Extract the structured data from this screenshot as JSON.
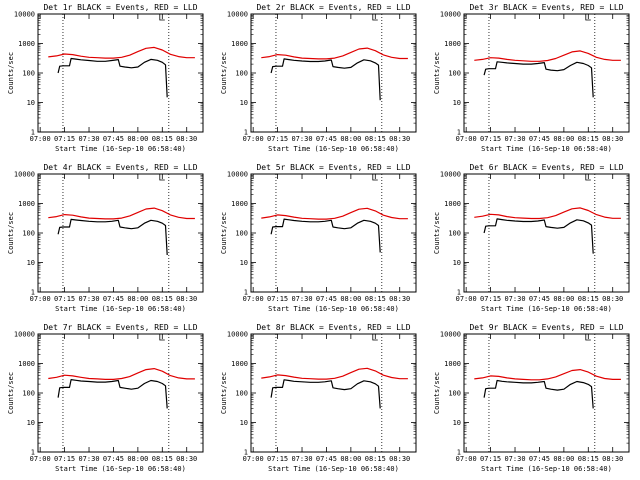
{
  "xlabel_common": "Start Time (16-Sep-10 06:58:40)",
  "ylabel_common": "Counts/sec",
  "x_ticks": [
    "07:00",
    "07:15",
    "07:30",
    "07:45",
    "08:00",
    "08:15",
    "08:30"
  ],
  "y_ticks": [
    "1",
    "10",
    "100",
    "1000",
    "10000"
  ],
  "colors": {
    "events": "#000000",
    "lld": "#e00000"
  },
  "chart_data": [
    {
      "type": "line",
      "title": "Det 1r BLACK = Events, RED = LLD",
      "xlabel": "Start Time (16-Sep-10 06:58:40)",
      "ylabel": "Counts/sec",
      "yscale": "log",
      "ylim": [
        1,
        10000
      ],
      "xlim": [
        "06:58:40",
        "08:40"
      ],
      "dotted_vlines": [
        "07:14",
        "08:19"
      ],
      "series": [
        {
          "x": [
            "07:05",
            "07:10",
            "07:15",
            "07:20",
            "07:25",
            "07:30",
            "07:35",
            "07:40",
            "07:45",
            "07:50",
            "07:55",
            "08:00",
            "08:05",
            "08:10",
            "08:15",
            "08:20",
            "08:25",
            "08:30",
            "08:35"
          ],
          "values": [
            350,
            380,
            440,
            420,
            370,
            340,
            330,
            320,
            320,
            340,
            400,
            530,
            690,
            740,
            600,
            430,
            360,
            330,
            330
          ]
        },
        {
          "x": [
            "07:11",
            "07:12",
            "07:14",
            "07:18",
            "07:19",
            "07:22",
            "07:25",
            "07:30",
            "07:35",
            "07:40",
            "07:44",
            "07:48",
            "07:49",
            "07:52",
            "07:56",
            "08:00",
            "08:04",
            "08:08",
            "08:12",
            "08:15",
            "08:17",
            "08:18"
          ],
          "values": [
            100,
            170,
            175,
            175,
            310,
            295,
            280,
            265,
            250,
            250,
            265,
            285,
            170,
            160,
            150,
            160,
            230,
            290,
            270,
            230,
            190,
            15
          ]
        }
      ]
    },
    {
      "type": "line",
      "title": "Det 2r BLACK = Events, RED = LLD",
      "xlabel": "Start Time (16-Sep-10 06:58:40)",
      "ylabel": "Counts/sec",
      "yscale": "log",
      "ylim": [
        1,
        10000
      ],
      "xlim": [
        "06:58:40",
        "08:40"
      ],
      "dotted_vlines": [
        "07:14",
        "08:19"
      ],
      "series": [
        {
          "x": [
            "07:05",
            "07:10",
            "07:15",
            "07:20",
            "07:25",
            "07:30",
            "07:35",
            "07:40",
            "07:45",
            "07:50",
            "07:55",
            "08:00",
            "08:05",
            "08:10",
            "08:15",
            "08:20",
            "08:25",
            "08:30",
            "08:35"
          ],
          "values": [
            330,
            360,
            420,
            400,
            350,
            320,
            310,
            300,
            300,
            320,
            380,
            500,
            650,
            700,
            570,
            410,
            340,
            310,
            310
          ]
        },
        {
          "x": [
            "07:11",
            "07:12",
            "07:14",
            "07:18",
            "07:19",
            "07:22",
            "07:25",
            "07:30",
            "07:35",
            "07:40",
            "07:44",
            "07:48",
            "07:49",
            "07:52",
            "07:56",
            "08:00",
            "08:04",
            "08:08",
            "08:12",
            "08:15",
            "08:17",
            "08:18"
          ],
          "values": [
            100,
            165,
            170,
            170,
            300,
            285,
            270,
            255,
            245,
            245,
            255,
            275,
            165,
            155,
            145,
            155,
            220,
            280,
            260,
            220,
            185,
            12
          ]
        }
      ]
    },
    {
      "type": "line",
      "title": "Det 3r BLACK = Events, RED = LLD",
      "xlabel": "Start Time (16-Sep-10 06:58:40)",
      "ylabel": "Counts/sec",
      "yscale": "log",
      "ylim": [
        1,
        10000
      ],
      "xlim": [
        "06:58:40",
        "08:40"
      ],
      "dotted_vlines": [
        "07:14",
        "08:19"
      ],
      "series": [
        {
          "x": [
            "07:05",
            "07:10",
            "07:15",
            "07:20",
            "07:25",
            "07:30",
            "07:35",
            "07:40",
            "07:45",
            "07:50",
            "07:55",
            "08:00",
            "08:05",
            "08:10",
            "08:15",
            "08:20",
            "08:25",
            "08:30",
            "08:35"
          ],
          "values": [
            270,
            290,
            330,
            320,
            290,
            270,
            260,
            250,
            250,
            265,
            310,
            400,
            520,
            560,
            460,
            340,
            290,
            270,
            270
          ]
        },
        {
          "x": [
            "07:11",
            "07:12",
            "07:14",
            "07:18",
            "07:19",
            "07:22",
            "07:25",
            "07:30",
            "07:35",
            "07:40",
            "07:44",
            "07:48",
            "07:49",
            "07:52",
            "07:56",
            "08:00",
            "08:04",
            "08:08",
            "08:12",
            "08:15",
            "08:17",
            "08:18"
          ],
          "values": [
            85,
            135,
            140,
            140,
            240,
            230,
            220,
            210,
            200,
            200,
            210,
            225,
            135,
            125,
            120,
            130,
            180,
            230,
            210,
            180,
            150,
            15
          ]
        }
      ]
    },
    {
      "type": "line",
      "title": "Det 4r BLACK = Events, RED = LLD",
      "xlabel": "Start Time (16-Sep-10 06:58:40)",
      "ylabel": "Counts/sec",
      "yscale": "log",
      "ylim": [
        1,
        10000
      ],
      "xlim": [
        "06:58:40",
        "08:40"
      ],
      "dotted_vlines": [
        "07:14",
        "08:19"
      ],
      "series": [
        {
          "x": [
            "07:05",
            "07:10",
            "07:15",
            "07:20",
            "07:25",
            "07:30",
            "07:35",
            "07:40",
            "07:45",
            "07:50",
            "07:55",
            "08:00",
            "08:05",
            "08:10",
            "08:15",
            "08:20",
            "08:25",
            "08:30",
            "08:35"
          ],
          "values": [
            330,
            360,
            420,
            400,
            350,
            320,
            310,
            300,
            300,
            320,
            380,
            500,
            650,
            700,
            570,
            410,
            340,
            310,
            310
          ]
        },
        {
          "x": [
            "07:11",
            "07:12",
            "07:14",
            "07:18",
            "07:19",
            "07:22",
            "07:25",
            "07:30",
            "07:35",
            "07:40",
            "07:44",
            "07:48",
            "07:49",
            "07:52",
            "07:56",
            "08:00",
            "08:04",
            "08:08",
            "08:12",
            "08:15",
            "08:17",
            "08:18"
          ],
          "values": [
            90,
            155,
            160,
            160,
            290,
            275,
            265,
            250,
            240,
            240,
            250,
            270,
            160,
            150,
            140,
            150,
            215,
            270,
            250,
            215,
            180,
            18
          ]
        }
      ]
    },
    {
      "type": "line",
      "title": "Det 5r BLACK = Events, RED = LLD",
      "xlabel": "Start Time (16-Sep-10 06:58:40)",
      "ylabel": "Counts/sec",
      "yscale": "log",
      "ylim": [
        1,
        10000
      ],
      "xlim": [
        "06:58:40",
        "08:40"
      ],
      "dotted_vlines": [
        "07:14",
        "08:19"
      ],
      "series": [
        {
          "x": [
            "07:05",
            "07:10",
            "07:15",
            "07:20",
            "07:25",
            "07:30",
            "07:35",
            "07:40",
            "07:45",
            "07:50",
            "07:55",
            "08:00",
            "08:05",
            "08:10",
            "08:15",
            "08:20",
            "08:25",
            "08:30",
            "08:35"
          ],
          "values": [
            320,
            350,
            410,
            390,
            345,
            315,
            305,
            295,
            295,
            315,
            370,
            490,
            640,
            690,
            560,
            400,
            335,
            305,
            305
          ]
        },
        {
          "x": [
            "07:11",
            "07:12",
            "07:14",
            "07:18",
            "07:19",
            "07:22",
            "07:25",
            "07:30",
            "07:35",
            "07:40",
            "07:44",
            "07:48",
            "07:49",
            "07:52",
            "07:56",
            "08:00",
            "08:04",
            "08:08",
            "08:12",
            "08:15",
            "08:17",
            "08:18"
          ],
          "values": [
            90,
            160,
            165,
            165,
            295,
            280,
            265,
            250,
            240,
            240,
            250,
            270,
            160,
            150,
            140,
            150,
            215,
            270,
            250,
            215,
            180,
            22
          ]
        }
      ]
    },
    {
      "type": "line",
      "title": "Det 6r BLACK = Events, RED = LLD",
      "xlabel": "Start Time (16-Sep-10 06:58:40)",
      "ylabel": "Counts/sec",
      "yscale": "log",
      "ylim": [
        1,
        10000
      ],
      "xlim": [
        "06:58:40",
        "08:40"
      ],
      "dotted_vlines": [
        "07:14",
        "08:19"
      ],
      "series": [
        {
          "x": [
            "07:05",
            "07:10",
            "07:15",
            "07:20",
            "07:25",
            "07:30",
            "07:35",
            "07:40",
            "07:45",
            "07:50",
            "07:55",
            "08:00",
            "08:05",
            "08:10",
            "08:15",
            "08:20",
            "08:25",
            "08:30",
            "08:35"
          ],
          "values": [
            340,
            370,
            430,
            410,
            360,
            330,
            320,
            310,
            310,
            330,
            390,
            510,
            660,
            710,
            580,
            420,
            345,
            315,
            315
          ]
        },
        {
          "x": [
            "07:11",
            "07:12",
            "07:14",
            "07:18",
            "07:19",
            "07:22",
            "07:25",
            "07:30",
            "07:35",
            "07:40",
            "07:44",
            "07:48",
            "07:49",
            "07:52",
            "07:56",
            "08:00",
            "08:04",
            "08:08",
            "08:12",
            "08:15",
            "08:17",
            "08:18"
          ],
          "values": [
            100,
            170,
            175,
            175,
            300,
            285,
            270,
            255,
            245,
            245,
            255,
            275,
            165,
            155,
            145,
            155,
            220,
            280,
            260,
            220,
            185,
            20
          ]
        }
      ]
    },
    {
      "type": "line",
      "title": "Det 7r BLACK = Events, RED = LLD",
      "xlabel": "Start Time (16-Sep-10 06:58:40)",
      "ylabel": "Counts/sec",
      "yscale": "log",
      "ylim": [
        1,
        10000
      ],
      "xlim": [
        "06:58:40",
        "08:40"
      ],
      "dotted_vlines": [
        "07:14",
        "08:19"
      ],
      "series": [
        {
          "x": [
            "07:05",
            "07:10",
            "07:15",
            "07:20",
            "07:25",
            "07:30",
            "07:35",
            "07:40",
            "07:45",
            "07:50",
            "07:55",
            "08:00",
            "08:05",
            "08:10",
            "08:15",
            "08:20",
            "08:25",
            "08:30",
            "08:35"
          ],
          "values": [
            310,
            340,
            400,
            380,
            340,
            310,
            300,
            290,
            290,
            310,
            360,
            480,
            620,
            670,
            550,
            390,
            325,
            300,
            300
          ]
        },
        {
          "x": [
            "07:11",
            "07:12",
            "07:14",
            "07:18",
            "07:19",
            "07:22",
            "07:25",
            "07:30",
            "07:35",
            "07:40",
            "07:44",
            "07:48",
            "07:49",
            "07:52",
            "07:56",
            "08:00",
            "08:04",
            "08:08",
            "08:12",
            "08:15",
            "08:17",
            "08:18"
          ],
          "values": [
            70,
            150,
            155,
            155,
            285,
            270,
            255,
            245,
            235,
            235,
            245,
            265,
            155,
            145,
            135,
            145,
            210,
            265,
            245,
            210,
            175,
            30
          ]
        }
      ]
    },
    {
      "type": "line",
      "title": "Det 8r BLACK = Events, RED = LLD",
      "xlabel": "Start Time (16-Sep-10 06:58:40)",
      "ylabel": "Counts/sec",
      "yscale": "log",
      "ylim": [
        1,
        10000
      ],
      "xlim": [
        "06:58:40",
        "08:40"
      ],
      "dotted_vlines": [
        "07:14",
        "08:19"
      ],
      "series": [
        {
          "x": [
            "07:05",
            "07:10",
            "07:15",
            "07:20",
            "07:25",
            "07:30",
            "07:35",
            "07:40",
            "07:45",
            "07:50",
            "07:55",
            "08:00",
            "08:05",
            "08:10",
            "08:15",
            "08:20",
            "08:25",
            "08:30",
            "08:35"
          ],
          "values": [
            320,
            350,
            410,
            390,
            345,
            315,
            305,
            295,
            295,
            315,
            370,
            490,
            640,
            690,
            560,
            400,
            335,
            305,
            305
          ]
        },
        {
          "x": [
            "07:11",
            "07:12",
            "07:14",
            "07:18",
            "07:19",
            "07:22",
            "07:25",
            "07:30",
            "07:35",
            "07:40",
            "07:44",
            "07:48",
            "07:49",
            "07:52",
            "07:56",
            "08:00",
            "08:04",
            "08:08",
            "08:12",
            "08:15",
            "08:17",
            "08:18"
          ],
          "values": [
            70,
            150,
            155,
            155,
            280,
            265,
            250,
            240,
            230,
            230,
            240,
            260,
            150,
            140,
            130,
            140,
            205,
            260,
            240,
            205,
            170,
            30
          ]
        }
      ]
    },
    {
      "type": "line",
      "title": "Det 9r BLACK = Events, RED = LLD",
      "xlabel": "Start Time (16-Sep-10 06:58:40)",
      "ylabel": "Counts/sec",
      "yscale": "log",
      "ylim": [
        1,
        10000
      ],
      "xlim": [
        "06:58:40",
        "08:40"
      ],
      "dotted_vlines": [
        "07:14",
        "08:19"
      ],
      "series": [
        {
          "x": [
            "07:05",
            "07:10",
            "07:15",
            "07:20",
            "07:25",
            "07:30",
            "07:35",
            "07:40",
            "07:45",
            "07:50",
            "07:55",
            "08:00",
            "08:05",
            "08:10",
            "08:15",
            "08:20",
            "08:25",
            "08:30",
            "08:35"
          ],
          "values": [
            300,
            325,
            380,
            365,
            325,
            300,
            290,
            280,
            280,
            300,
            350,
            450,
            580,
            620,
            510,
            370,
            310,
            290,
            290
          ]
        },
        {
          "x": [
            "07:11",
            "07:12",
            "07:14",
            "07:18",
            "07:19",
            "07:22",
            "07:25",
            "07:30",
            "07:35",
            "07:40",
            "07:44",
            "07:48",
            "07:49",
            "07:52",
            "07:56",
            "08:00",
            "08:04",
            "08:08",
            "08:12",
            "08:15",
            "08:17",
            "08:18"
          ],
          "values": [
            70,
            140,
            145,
            145,
            265,
            250,
            240,
            230,
            220,
            220,
            230,
            245,
            145,
            135,
            125,
            135,
            195,
            245,
            225,
            195,
            165,
            30
          ]
        }
      ]
    }
  ]
}
